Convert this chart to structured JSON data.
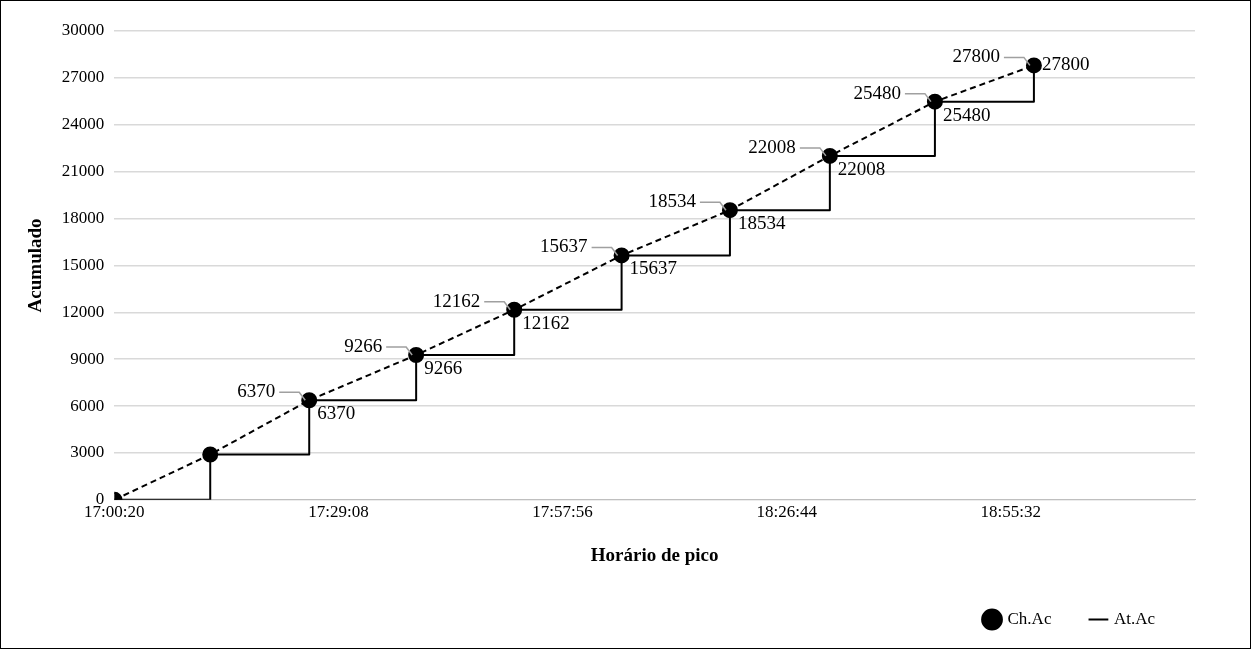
{
  "chart_data": {
    "type": "line",
    "xlabel": "Horário de pico",
    "ylabel": "Acumulado",
    "x": [
      17.006,
      17.211,
      17.423,
      17.652,
      17.862,
      18.092,
      18.324,
      18.538,
      18.763,
      18.975
    ],
    "series": [
      {
        "name": "Ch.Ac",
        "color": "#000000",
        "marker": "circle",
        "line_style": "dashed",
        "values": [
          0,
          2900,
          6370,
          9266,
          12162,
          15637,
          18534,
          22008,
          25480,
          27800
        ],
        "value_labels": [
          null,
          null,
          "6370",
          "9266",
          "12162",
          "15637",
          "18534",
          "22008",
          "25480",
          "27800"
        ]
      },
      {
        "name": "At.Ac",
        "type": "step",
        "color": "#000000",
        "marker": "none",
        "line_style": "solid",
        "values": [
          0,
          2900,
          6370,
          9266,
          12162,
          15637,
          18534,
          22008,
          25480,
          27800
        ],
        "value_labels": [
          null,
          null,
          "6370",
          "9266",
          "12162",
          "15637",
          "18534",
          "22008",
          "25480",
          "27800"
        ]
      }
    ],
    "xlim": [
      17.005556,
      19.32
    ],
    "xticks": [
      {
        "value": 17.005556,
        "label": "17:00:20"
      },
      {
        "value": 17.485556,
        "label": "17:29:08"
      },
      {
        "value": 17.965556,
        "label": "17:57:56"
      },
      {
        "value": 18.445556,
        "label": "18:26:44"
      },
      {
        "value": 18.925556,
        "label": "18:55:32"
      }
    ],
    "ylim": [
      0,
      30000
    ],
    "yticks": [
      0,
      3000,
      6000,
      9000,
      12000,
      15000,
      18000,
      21000,
      24000,
      27000,
      30000
    ],
    "grid": "y",
    "legend": "bottom right"
  }
}
